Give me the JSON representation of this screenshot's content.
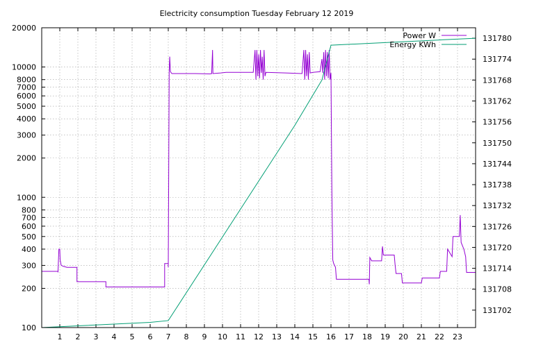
{
  "chart_data": {
    "type": "line",
    "title": "Electricity consumption Tuesday February 12 2019",
    "xlim": [
      0,
      24
    ],
    "x_ticks": [
      "1",
      "2",
      "3",
      "4",
      "5",
      "6",
      "7",
      "8",
      "9",
      "10",
      "11",
      "12",
      "13",
      "14",
      "15",
      "16",
      "17",
      "18",
      "19",
      "20",
      "21",
      "22",
      "23"
    ],
    "y_left": {
      "scale": "log",
      "lim": [
        100,
        20000
      ],
      "ticks": [
        {
          "value": 100,
          "label": "100"
        },
        {
          "value": 200,
          "label": "200"
        },
        {
          "value": 300,
          "label": "300"
        },
        {
          "value": 400,
          "label": "400"
        },
        {
          "value": 500,
          "label": "500"
        },
        {
          "value": 600,
          "label": "600"
        },
        {
          "value": 700,
          "label": "700"
        },
        {
          "value": 800,
          "label": "800"
        },
        {
          "value": 1000,
          "label": "1000"
        },
        {
          "value": 2000,
          "label": "2000"
        },
        {
          "value": 3000,
          "label": "3000"
        },
        {
          "value": 4000,
          "label": "4000"
        },
        {
          "value": 5000,
          "label": "5000"
        },
        {
          "value": 6000,
          "label": "6000"
        },
        {
          "value": 7000,
          "label": "7000"
        },
        {
          "value": 8000,
          "label": "8000"
        },
        {
          "value": 10000,
          "label": "10000"
        },
        {
          "value": 20000,
          "label": "20000"
        }
      ]
    },
    "y_right": {
      "scale": "linear",
      "lim": [
        131697,
        131783
      ],
      "ticks": [
        "131702",
        "131708",
        "131714",
        "131720",
        "131726",
        "131732",
        "131738",
        "131744",
        "131750",
        "131756",
        "131762",
        "131768",
        "131774",
        "131780"
      ]
    },
    "grid": true,
    "legend_position": "top-right",
    "series": [
      {
        "name": "Power W",
        "axis": "left",
        "color": "#9400d3",
        "step": true,
        "points": [
          [
            0,
            270
          ],
          [
            0.9,
            270
          ],
          [
            0.9,
            265
          ],
          [
            0.95,
            400
          ],
          [
            1.0,
            400
          ],
          [
            1.02,
            330
          ],
          [
            1.08,
            300
          ],
          [
            1.2,
            295
          ],
          [
            1.4,
            290
          ],
          [
            1.95,
            290
          ],
          [
            1.95,
            225
          ],
          [
            3.55,
            225
          ],
          [
            3.55,
            205
          ],
          [
            6.8,
            205
          ],
          [
            6.8,
            310
          ],
          [
            7.0,
            310
          ],
          [
            7.0,
            290
          ],
          [
            7.05,
            9000
          ],
          [
            7.08,
            12000
          ],
          [
            7.12,
            9200
          ],
          [
            7.2,
            8900
          ],
          [
            8.5,
            8900
          ],
          [
            9.3,
            8850
          ],
          [
            9.4,
            8900
          ],
          [
            9.45,
            13500
          ],
          [
            9.47,
            8900
          ],
          [
            9.9,
            9000
          ],
          [
            10.2,
            9100
          ],
          [
            11.7,
            9100
          ],
          [
            11.8,
            13500
          ],
          [
            11.85,
            8000
          ],
          [
            11.9,
            13500
          ],
          [
            11.95,
            8500
          ],
          [
            12.0,
            12500
          ],
          [
            12.05,
            8200
          ],
          [
            12.1,
            13500
          ],
          [
            12.15,
            9000
          ],
          [
            12.2,
            12000
          ],
          [
            12.25,
            8000
          ],
          [
            12.3,
            13500
          ],
          [
            12.35,
            8500
          ],
          [
            12.4,
            9100
          ],
          [
            13.5,
            9000
          ],
          [
            14.4,
            8900
          ],
          [
            14.5,
            13500
          ],
          [
            14.55,
            8000
          ],
          [
            14.6,
            13500
          ],
          [
            14.65,
            8500
          ],
          [
            14.7,
            12500
          ],
          [
            14.75,
            8000
          ],
          [
            14.8,
            13000
          ],
          [
            14.85,
            9000
          ],
          [
            15.0,
            9100
          ],
          [
            15.4,
            9200
          ],
          [
            15.5,
            11500
          ],
          [
            15.55,
            9000
          ],
          [
            15.6,
            13000
          ],
          [
            15.65,
            8000
          ],
          [
            15.7,
            13500
          ],
          [
            15.75,
            8500
          ],
          [
            15.8,
            13000
          ],
          [
            15.85,
            8200
          ],
          [
            15.9,
            13500
          ],
          [
            15.95,
            8000
          ],
          [
            16.0,
            9000
          ],
          [
            16.05,
            1100
          ],
          [
            16.1,
            330
          ],
          [
            16.15,
            310
          ],
          [
            16.25,
            290
          ],
          [
            16.3,
            235
          ],
          [
            18.1,
            235
          ],
          [
            18.12,
            215
          ],
          [
            18.15,
            345
          ],
          [
            18.25,
            325
          ],
          [
            18.8,
            325
          ],
          [
            18.85,
            420
          ],
          [
            18.9,
            360
          ],
          [
            19.5,
            360
          ],
          [
            19.55,
            300
          ],
          [
            19.6,
            260
          ],
          [
            19.9,
            260
          ],
          [
            19.95,
            220
          ],
          [
            21.0,
            220
          ],
          [
            21.05,
            240
          ],
          [
            22.0,
            240
          ],
          [
            22.05,
            270
          ],
          [
            22.4,
            270
          ],
          [
            22.45,
            400
          ],
          [
            22.7,
            350
          ],
          [
            22.75,
            500
          ],
          [
            23.1,
            500
          ],
          [
            23.15,
            730
          ],
          [
            23.2,
            450
          ],
          [
            23.35,
            400
          ],
          [
            23.45,
            350
          ],
          [
            23.5,
            265
          ],
          [
            24,
            265
          ]
        ]
      },
      {
        "name": "Energy KWh",
        "axis": "right",
        "color": "#009e73",
        "step": false,
        "points": [
          [
            0,
            131697
          ],
          [
            2,
            131697.5
          ],
          [
            4,
            131698
          ],
          [
            6,
            131698.5
          ],
          [
            7.0,
            131699
          ],
          [
            8.0,
            131707
          ],
          [
            10.0,
            131723
          ],
          [
            12.0,
            131739
          ],
          [
            14.0,
            131755
          ],
          [
            15.5,
            131768
          ],
          [
            16.0,
            131778
          ],
          [
            18.0,
            131778.5
          ],
          [
            20.0,
            131779
          ],
          [
            22.0,
            131779.5
          ],
          [
            24.0,
            131780
          ]
        ]
      }
    ]
  }
}
